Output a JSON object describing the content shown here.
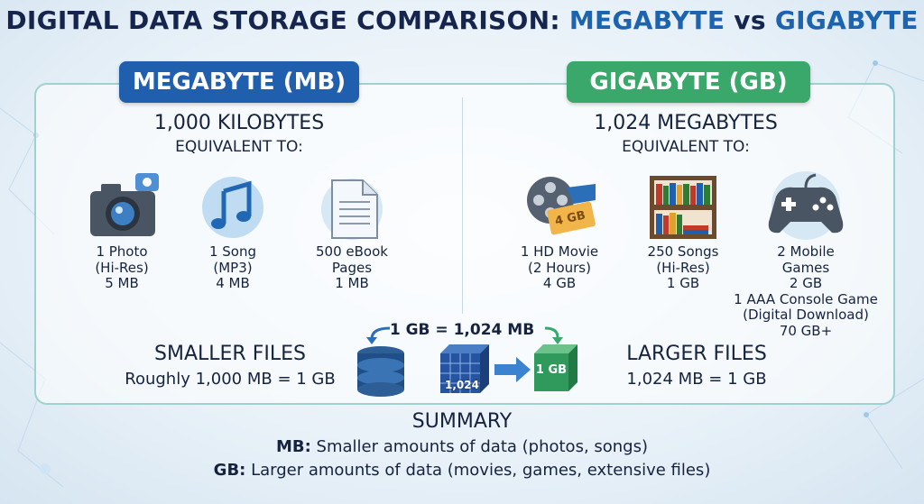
{
  "title": {
    "lead": "DIGITAL DATA STORAGE COMPARISON: ",
    "first": "MEGABYTE",
    "vs": " vs ",
    "second": "GIGABYTE"
  },
  "megabyte": {
    "header": "MEGABYTE (MB)",
    "subtitle": "1,000 KILOBYTES",
    "equivalent": "EQUIVALENT TO:",
    "items": [
      {
        "lines": [
          "1 Photo",
          "(Hi-Res)",
          "5 MB"
        ]
      },
      {
        "lines": [
          "1 Song",
          "(MP3)",
          "4 MB"
        ]
      },
      {
        "lines": [
          "500 eBook",
          "Pages",
          "1 MB"
        ]
      }
    ],
    "footer": {
      "label": "SMALLER FILES",
      "text": "Roughly 1,000 MB = 1 GB"
    }
  },
  "gigabyte": {
    "header": "GIGABYTE (GB)",
    "subtitle": "1,024 MEGABYTES",
    "equivalent": "EQUIVALENT TO:",
    "ticket": "4 GB",
    "items": [
      {
        "lines": [
          "1 HD Movie",
          "(2 Hours)",
          "4 GB"
        ]
      },
      {
        "lines": [
          "250 Songs",
          "(Hi-Res)",
          "1 GB"
        ]
      },
      {
        "lines": [
          "2 Mobile",
          "Games",
          "2 GB",
          "1 AAA Console Game",
          "(Digital Download)",
          "70 GB+"
        ]
      }
    ],
    "footer": {
      "label": "LARGER FILES",
      "text": "1,024 MB = 1 GB"
    }
  },
  "conversion": {
    "equation": "1 GB = 1,024 MB",
    "blocks": "1,024",
    "result": "1 GB"
  },
  "summary": {
    "title": "SUMMARY",
    "lines": [
      {
        "term": "MB:",
        "text": " Smaller amounts of data (photos, songs)"
      },
      {
        "term": "GB:",
        "text": " Larger amounts of data (movies, games, extensive files)"
      }
    ]
  }
}
